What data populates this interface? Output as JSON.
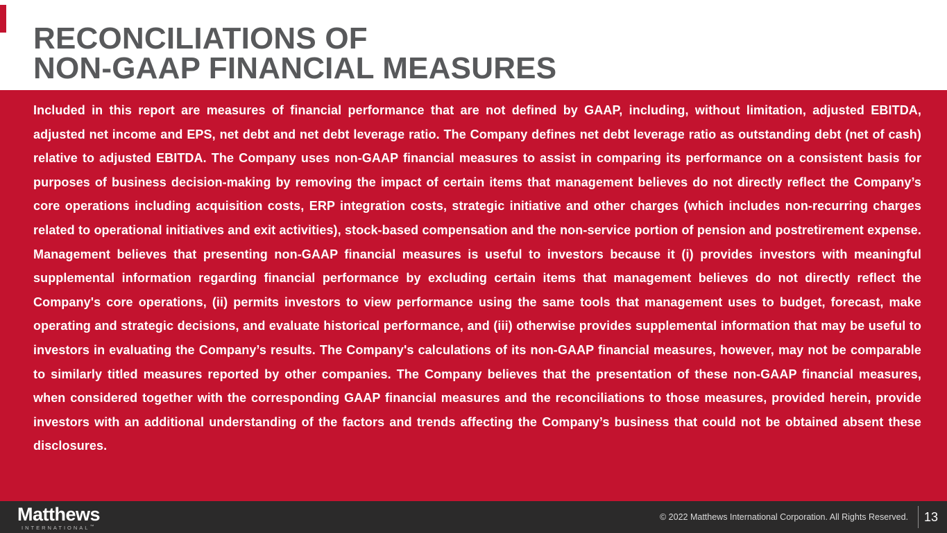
{
  "slide": {
    "title_line1": "RECONCILIATIONS OF",
    "title_line2": "NON-GAAP FINANCIAL MEASURES",
    "body_paragraph": "Included in this report are measures of financial performance that are not defined by GAAP, including, without limitation, adjusted EBITDA, adjusted net income and EPS, net debt and net debt leverage ratio.  The Company defines net debt leverage ratio as outstanding debt (net of cash) relative to adjusted EBITDA.  The Company uses non-GAAP financial measures to assist in comparing its performance on a consistent basis for purposes of business decision-making by removing the impact of certain items that management believes do not directly reflect the Company’s core operations including acquisition costs, ERP integration costs, strategic initiative and other charges (which includes non-recurring charges related to operational initiatives and exit activities), stock-based compensation and the non-service portion of pension and postretirement expense.  Management believes that presenting non-GAAP financial measures is useful to investors because it (i) provides investors with meaningful supplemental information regarding financial performance by excluding certain items that management believes do not directly reflect the Company's core operations, (ii) permits investors to view performance using the same tools that management uses to budget, forecast, make operating and strategic decisions, and evaluate historical performance, and (iii) otherwise provides supplemental information that may be useful to investors in evaluating the Company’s results.  The Company's calculations of its non-GAAP financial measures, however, may not be comparable to similarly titled measures reported by other companies.  The Company believes that the presentation of these non-GAAP financial measures, when considered together with the corresponding GAAP financial measures and the reconciliations to those measures, provided herein, provide investors with an additional understanding of the factors and trends affecting the Company’s business that could not be obtained absent these disclosures.",
    "footer": {
      "logo_primary": "Matthews",
      "logo_secondary": "INTERNATIONAL",
      "logo_trademark": "™",
      "copyright": "© 2022 Matthews International Corporation. All Rights Reserved.",
      "page_number": "13"
    },
    "colors": {
      "brand_red": "#C3132F",
      "title_gray": "#58595B",
      "footer_charcoal": "#2B2A2A"
    }
  }
}
